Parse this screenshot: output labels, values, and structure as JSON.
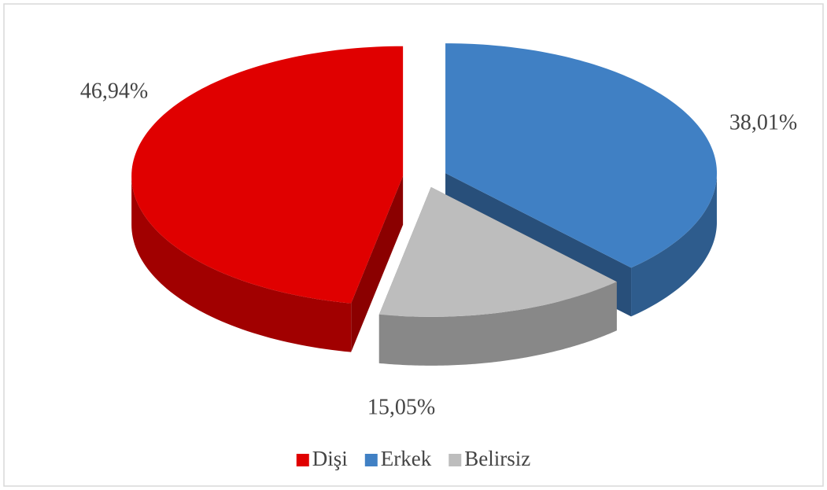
{
  "chart_data": {
    "type": "pie3d",
    "categories": [
      "Dişi",
      "Erkek",
      "Belirsiz"
    ],
    "values": [
      46.94,
      38.01,
      15.05
    ],
    "value_labels": [
      "46,94%",
      "38,01%",
      "15,05%"
    ],
    "colors": [
      "#e00000",
      "#4080c4",
      "#bdbdbd"
    ],
    "legend": "bottom"
  }
}
